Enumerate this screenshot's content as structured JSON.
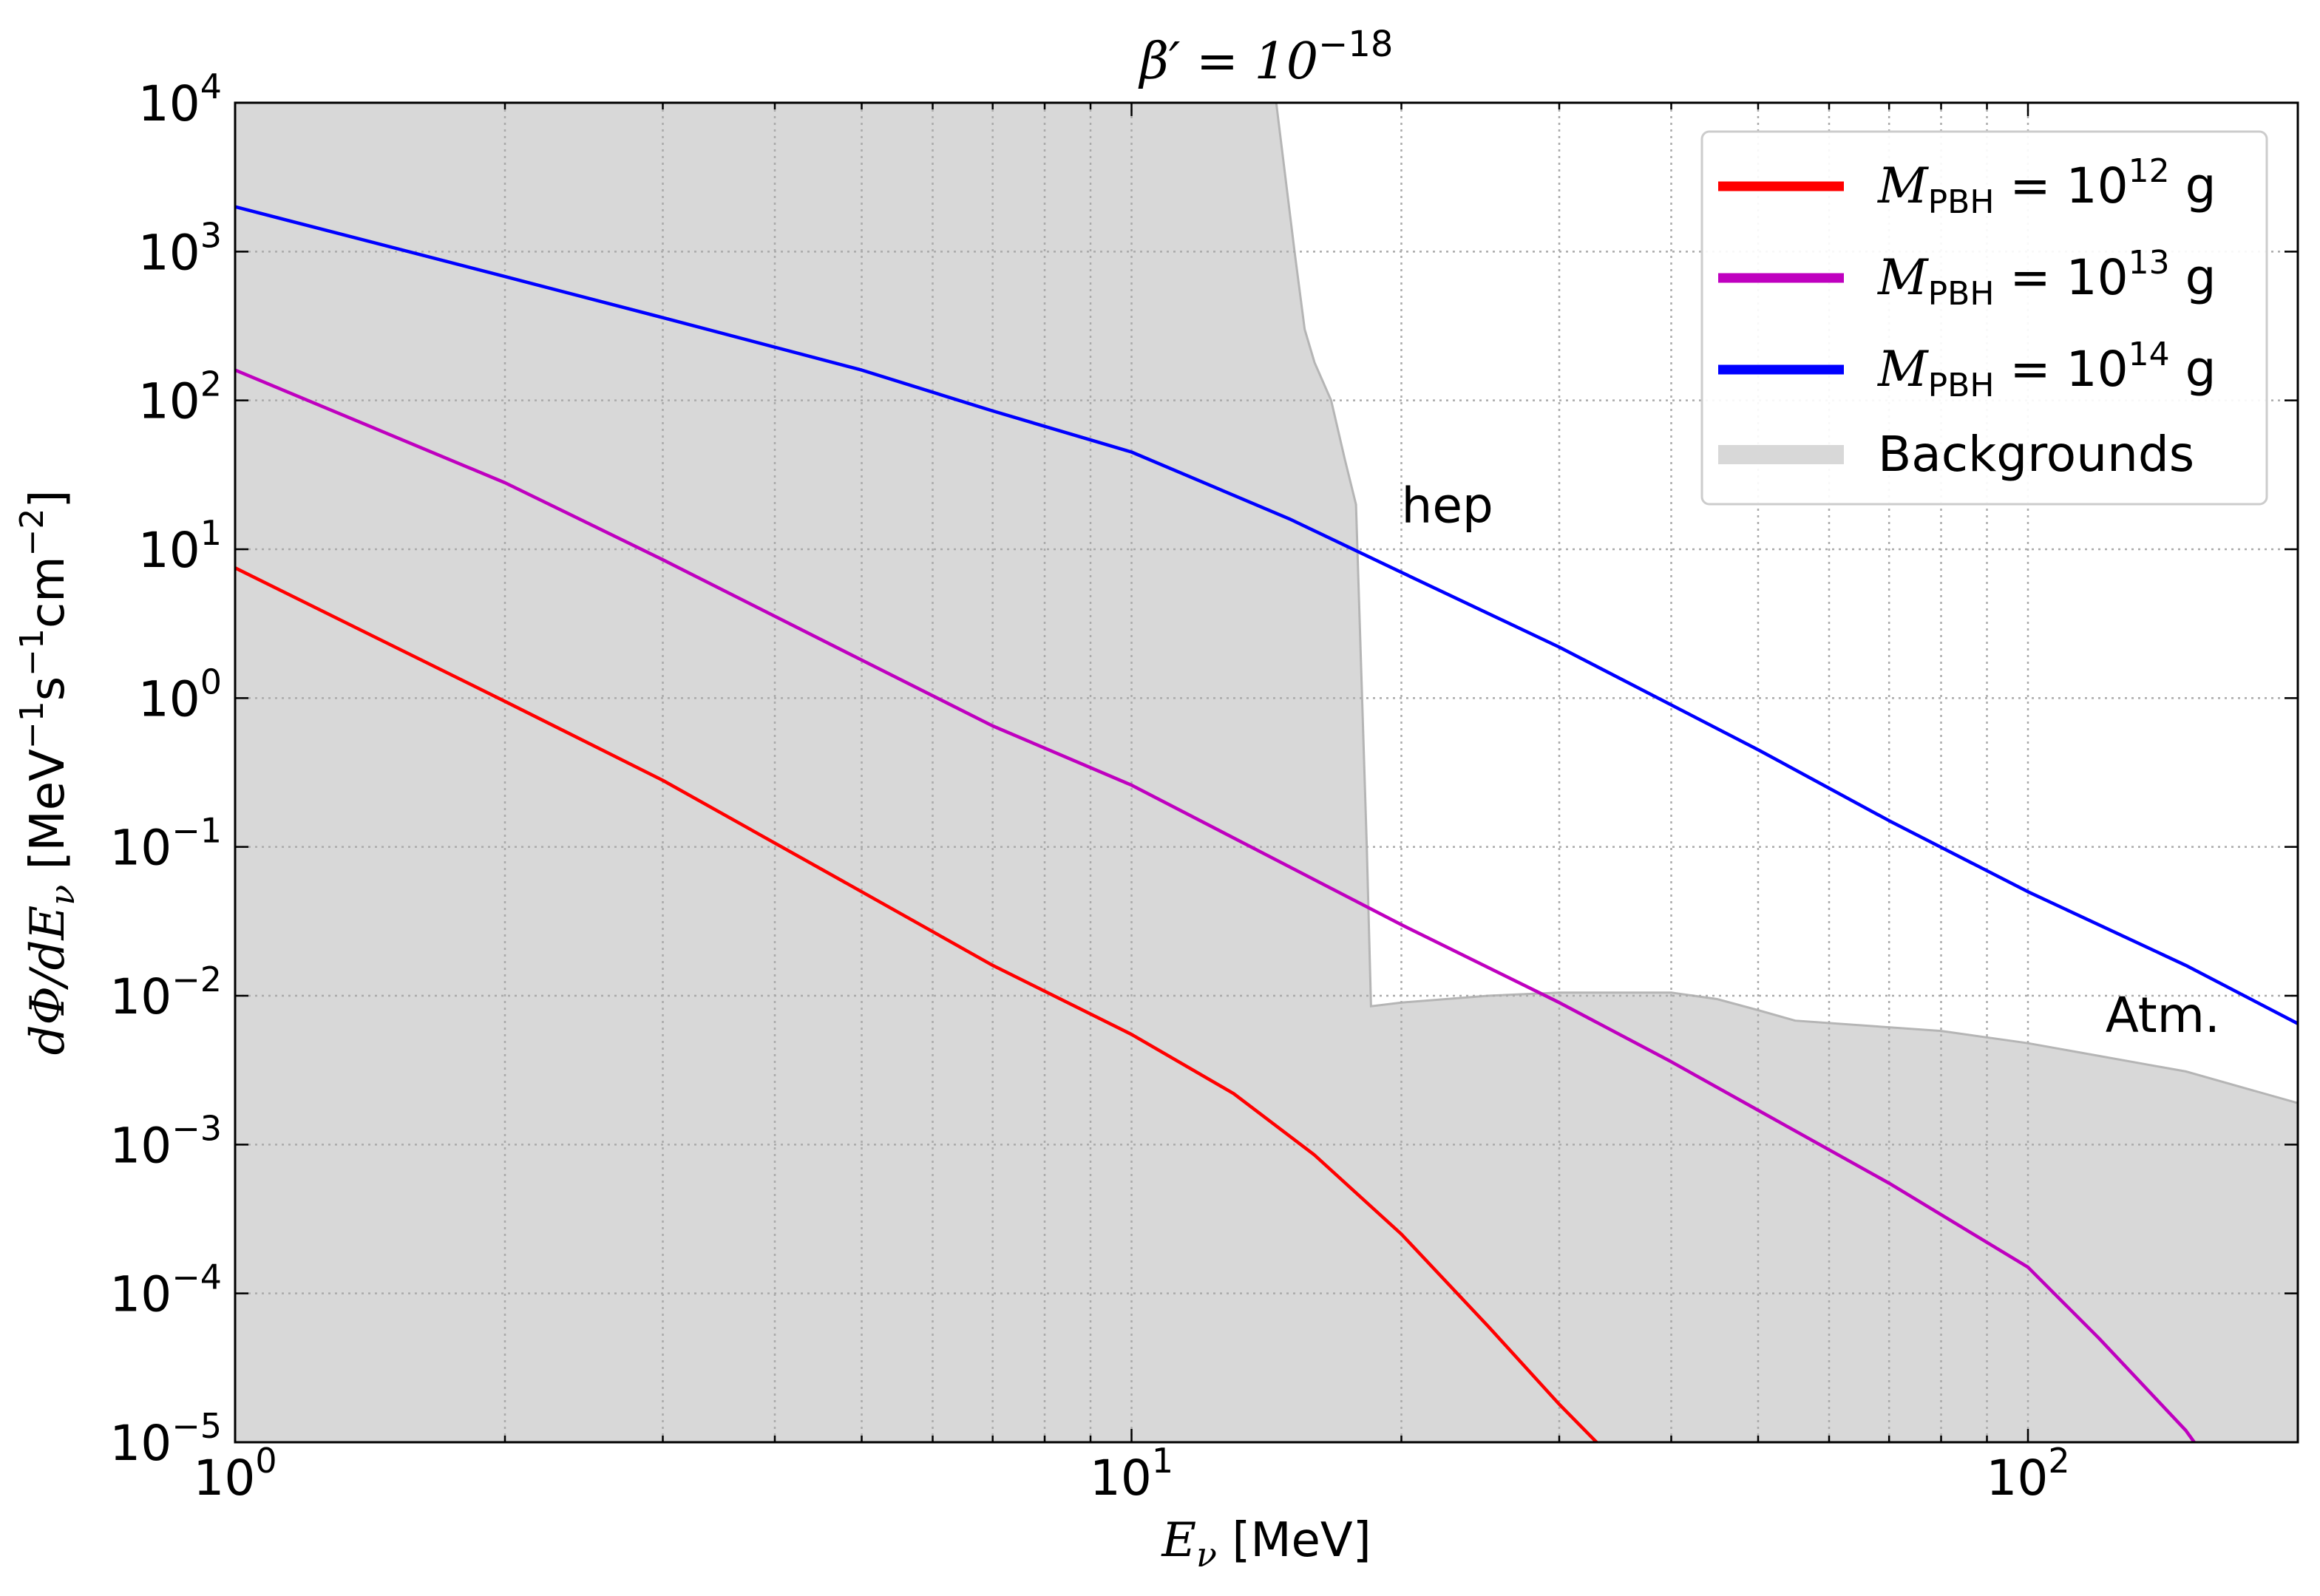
{
  "chart_data": {
    "type": "line",
    "title": "β′ = 10⁻¹⁸",
    "title_parts": {
      "main": "β′ = 10",
      "exp": "−18"
    },
    "xlabel": "E_ν [MeV]",
    "xlabel_parts": {
      "sym": "E",
      "sub": "ν",
      "unit": " [MeV]"
    },
    "ylabel": "dΦ/dE_ν [MeV⁻¹s⁻¹cm⁻²]",
    "ylabel_parts": {
      "a": "dΦ/dE",
      "sub": "ν",
      "b": " [MeV",
      "e1": "−1",
      "c": "s",
      "e2": "−1",
      "d": "cm",
      "e3": "−2",
      "f": "]"
    },
    "x_scale": "log",
    "y_scale": "log",
    "xlim": [
      1,
      200
    ],
    "ylim": [
      1e-05,
      10000
    ],
    "grid": true,
    "legend_position": "top-right",
    "x_ticks": [
      {
        "value": 1,
        "base": "10",
        "exp": "0"
      },
      {
        "value": 10,
        "base": "10",
        "exp": "1"
      },
      {
        "value": 100,
        "base": "10",
        "exp": "2"
      }
    ],
    "y_ticks": [
      {
        "value": 10000,
        "base": "10",
        "exp": "4"
      },
      {
        "value": 1000,
        "base": "10",
        "exp": "3"
      },
      {
        "value": 100,
        "base": "10",
        "exp": "2"
      },
      {
        "value": 10,
        "base": "10",
        "exp": "1"
      },
      {
        "value": 1,
        "base": "10",
        "exp": "0"
      },
      {
        "value": 0.1,
        "base": "10",
        "exp": "−1"
      },
      {
        "value": 0.01,
        "base": "10",
        "exp": "−2"
      },
      {
        "value": 0.001,
        "base": "10",
        "exp": "−3"
      },
      {
        "value": 0.0001,
        "base": "10",
        "exp": "−4"
      },
      {
        "value": 1e-05,
        "base": "10",
        "exp": "−5"
      }
    ],
    "series": [
      {
        "name": "M_PBH = 10¹² g",
        "label_parts": {
          "sym": "M",
          "sub": "PBH",
          "mid": " = 10",
          "exp": "12",
          "unit": " g"
        },
        "color": "#ff0000",
        "x": [
          1,
          2,
          3,
          5,
          7,
          10,
          13,
          16,
          20,
          25,
          30,
          35
        ],
        "y": [
          7.5,
          0.95,
          0.28,
          0.05,
          0.016,
          0.0055,
          0.0022,
          0.00085,
          0.00025,
          6e-05,
          1.8e-05,
          7e-06
        ]
      },
      {
        "name": "M_PBH = 10¹³ g",
        "label_parts": {
          "sym": "M",
          "sub": "PBH",
          "mid": " = 10",
          "exp": "13",
          "unit": " g"
        },
        "color": "#bf00bf",
        "x": [
          1,
          2,
          3,
          5,
          7,
          10,
          20,
          30,
          40,
          50,
          70,
          100,
          120,
          150,
          160
        ],
        "y": [
          160,
          28,
          8.5,
          1.8,
          0.65,
          0.26,
          0.03,
          0.009,
          0.0036,
          0.0017,
          0.00055,
          0.00015,
          5e-05,
          1.2e-05,
          7e-06
        ]
      },
      {
        "name": "M_PBH = 10¹⁴ g",
        "label_parts": {
          "sym": "M",
          "sub": "PBH",
          "mid": " = 10",
          "exp": "14",
          "unit": " g"
        },
        "color": "#0000ff",
        "x": [
          1,
          2,
          3,
          5,
          7,
          10,
          15,
          20,
          30,
          50,
          70,
          100,
          150,
          200
        ],
        "y": [
          2000,
          680,
          360,
          160,
          85,
          45,
          16,
          7,
          2.2,
          0.45,
          0.15,
          0.05,
          0.016,
          0.0065
        ]
      }
    ],
    "background": {
      "name": "Backgrounds",
      "color": "#d8d8d8",
      "edge_color": "#b5b5b5",
      "x": [
        1,
        14.5,
        15.2,
        15.6,
        16.0,
        16.7,
        17.3,
        17.8,
        18.3,
        18.5,
        20,
        25,
        30,
        40,
        45,
        50,
        55,
        80,
        100,
        150,
        200
      ],
      "y": [
        10000,
        10000,
        1000,
        300,
        180,
        100,
        40,
        20,
        0.1,
        0.0085,
        0.009,
        0.01,
        0.0105,
        0.0105,
        0.0095,
        0.008,
        0.0068,
        0.0058,
        0.0048,
        0.0031,
        0.0019
      ]
    },
    "annotations": [
      {
        "text": "hep",
        "x": 20,
        "y": 20
      },
      {
        "text": "Atm.",
        "x": 122,
        "y": 0.0075
      }
    ]
  }
}
